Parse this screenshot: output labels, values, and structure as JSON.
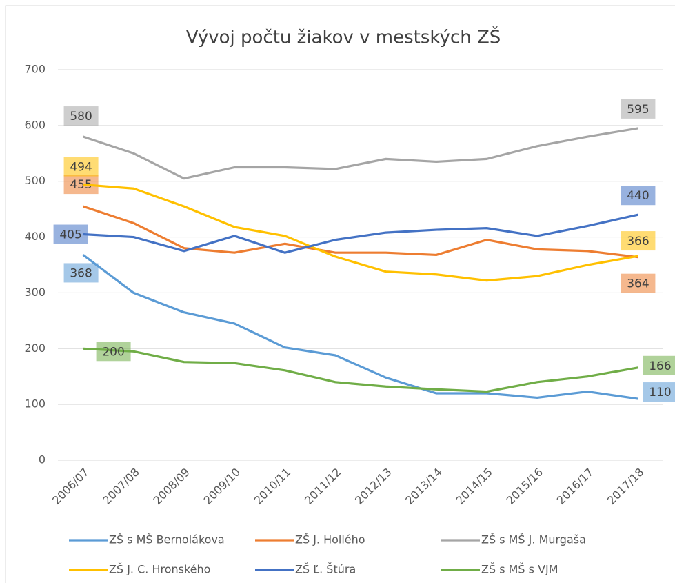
{
  "chart_data": {
    "type": "line",
    "title": "Vývoj počtu žiakov v mestských ZŠ",
    "categories": [
      "2006/07",
      "2007/08",
      "2008/09",
      "2009/10",
      "2010/11",
      "2011/12",
      "2012/13",
      "2013/14",
      "2014/15",
      "2015/16",
      "2016/17",
      "2017/18"
    ],
    "series": [
      {
        "name": "ZŠ s MŠ Bernolákova",
        "color": "#5b9bd5",
        "values": [
          368,
          300,
          265,
          245,
          202,
          188,
          148,
          120,
          120,
          112,
          123,
          110
        ]
      },
      {
        "name": "ZŠ J. Hollého",
        "color": "#ed7d31",
        "values": [
          455,
          425,
          380,
          372,
          388,
          372,
          372,
          368,
          395,
          378,
          375,
          364
        ]
      },
      {
        "name": "ZŠ s MŠ J. Murgaša",
        "color": "#a5a5a5",
        "values": [
          580,
          550,
          505,
          525,
          525,
          522,
          540,
          535,
          540,
          563,
          580,
          595
        ]
      },
      {
        "name": "ZŠ J. C. Hronského",
        "color": "#ffc000",
        "values": [
          494,
          487,
          455,
          418,
          402,
          365,
          338,
          333,
          322,
          330,
          350,
          366
        ]
      },
      {
        "name": "ZŠ Ľ. Štúra",
        "color": "#4472c4",
        "values": [
          405,
          400,
          375,
          402,
          372,
          395,
          408,
          413,
          416,
          402,
          420,
          440
        ]
      },
      {
        "name": "ZŠ s MŠ s VJM",
        "color": "#70ad47",
        "values": [
          200,
          195,
          176,
          174,
          161,
          140,
          132,
          127,
          123,
          140,
          150,
          166
        ]
      }
    ],
    "ylim": [
      0,
      700
    ],
    "yticks": [
      0,
      100,
      200,
      300,
      400,
      500,
      600,
      700
    ],
    "grid": true
  }
}
